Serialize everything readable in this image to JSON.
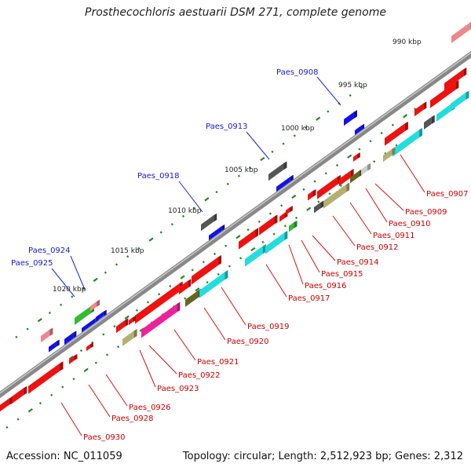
{
  "title": "Prosthecochloris aestuarii DSM 271, complete genome",
  "footer": {
    "accession": "Accession: NC_011059",
    "topology": "Topology: circular; Length: 2,512,923 bp; Genes: 2,312"
  },
  "scale_labels": [
    "990 kbp",
    "995 kbp",
    "1000 kbp",
    "1005 kbp",
    "1010 kbp",
    "1015 kbp",
    "1020 kbp"
  ],
  "gene_labels_forward": [
    "Paes_0908",
    "Paes_0913",
    "Paes_0918",
    "Paes_0924",
    "Paes_0925"
  ],
  "gene_labels_reverse": [
    "Paes_0907",
    "Paes_0909",
    "Paes_0910",
    "Paes_0911",
    "Paes_0912",
    "Paes_0914",
    "Paes_0915",
    "Paes_0916",
    "Paes_0917",
    "Paes_0919",
    "Paes_0920",
    "Paes_0921",
    "Paes_0922",
    "Paes_0923",
    "Paes_0926",
    "Paes_0928",
    "Paes_0930"
  ],
  "colors": {
    "backbone": "#8c8c8c",
    "forward_label": "#1a1acc",
    "reverse_label": "#cc0000",
    "leader_forward": "#2222dd",
    "leader_reverse": "#dd1111",
    "tick": "#228822",
    "red": "#ee1111",
    "blue": "#1111ee",
    "cyan": "#22dddd",
    "gray": "#555555",
    "green": "#33bb33",
    "olive": "#666622",
    "khaki": "#b4b070",
    "magenta": "#ee2299",
    "pink": "#ee8888",
    "lightgray": "#cccccc"
  }
}
